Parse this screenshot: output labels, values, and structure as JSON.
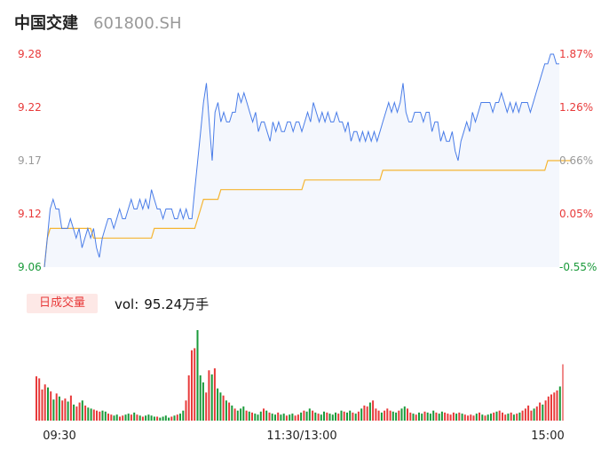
{
  "header": {
    "name": "中国交建",
    "code": "601800.SH"
  },
  "volume_panel": {
    "badge": "日成交量",
    "vol_label": "vol:",
    "vol_value": "95.24万手"
  },
  "colors": {
    "price_line": "#4a7de8",
    "avg_line": "#f5b532",
    "area_fill": "#f4f7fd",
    "up": "#e83a3a",
    "down": "#1a9a3a",
    "neutral": "#999999"
  },
  "chart_data": [
    {
      "type": "line",
      "title": "",
      "price_axis": {
        "ticks": [
          "9.28",
          "9.22",
          "9.17",
          "9.12",
          "9.06"
        ],
        "tick_values": [
          9.28,
          9.22,
          9.17,
          9.12,
          9.06
        ],
        "ylim": [
          9.06,
          9.28
        ]
      },
      "percent_axis": {
        "ticks": [
          "1.87%",
          "1.26%",
          "0.66%",
          "0.05%",
          "-0.55%"
        ]
      },
      "reference_close": 9.115,
      "x_ticks": [
        "09:30",
        "11:30/13:00",
        "15:00"
      ],
      "series": [
        {
          "key": "price",
          "values": [
            9.06,
            9.09,
            9.12,
            9.13,
            9.12,
            9.12,
            9.1,
            9.1,
            9.1,
            9.11,
            9.1,
            9.09,
            9.1,
            9.08,
            9.09,
            9.1,
            9.09,
            9.1,
            9.08,
            9.07,
            9.09,
            9.1,
            9.11,
            9.11,
            9.1,
            9.11,
            9.12,
            9.11,
            9.11,
            9.12,
            9.13,
            9.12,
            9.12,
            9.13,
            9.12,
            9.13,
            9.12,
            9.14,
            9.13,
            9.12,
            9.12,
            9.11,
            9.12,
            9.12,
            9.12,
            9.11,
            9.11,
            9.12,
            9.11,
            9.12,
            9.11,
            9.11,
            9.14,
            9.17,
            9.2,
            9.23,
            9.25,
            9.21,
            9.17,
            9.22,
            9.23,
            9.21,
            9.22,
            9.21,
            9.21,
            9.22,
            9.22,
            9.24,
            9.23,
            9.24,
            9.23,
            9.22,
            9.21,
            9.22,
            9.2,
            9.21,
            9.21,
            9.2,
            9.19,
            9.21,
            9.2,
            9.21,
            9.2,
            9.2,
            9.21,
            9.21,
            9.2,
            9.21,
            9.21,
            9.2,
            9.21,
            9.22,
            9.21,
            9.23,
            9.22,
            9.21,
            9.22,
            9.21,
            9.22,
            9.21,
            9.21,
            9.22,
            9.21,
            9.21,
            9.2,
            9.21,
            9.19,
            9.2,
            9.2,
            9.19,
            9.2,
            9.19,
            9.2,
            9.19,
            9.2,
            9.19,
            9.2,
            9.21,
            9.22,
            9.23,
            9.22,
            9.23,
            9.22,
            9.23,
            9.25,
            9.22,
            9.21,
            9.21,
            9.22,
            9.22,
            9.22,
            9.21,
            9.22,
            9.22,
            9.2,
            9.21,
            9.21,
            9.19,
            9.2,
            9.19,
            9.19,
            9.2,
            9.18,
            9.17,
            9.19,
            9.2,
            9.21,
            9.2,
            9.22,
            9.21,
            9.22,
            9.23,
            9.23,
            9.23,
            9.23,
            9.22,
            9.23,
            9.23,
            9.24,
            9.23,
            9.22,
            9.23,
            9.22,
            9.23,
            9.22,
            9.23,
            9.23,
            9.23,
            9.22,
            9.23,
            9.24,
            9.25,
            9.26,
            9.27,
            9.27,
            9.28,
            9.28,
            9.27,
            9.27
          ]
        },
        {
          "key": "average",
          "values": [
            9.06,
            9.09,
            9.1,
            9.1,
            9.1,
            9.1,
            9.1,
            9.1,
            9.1,
            9.1,
            9.1,
            9.1,
            9.1,
            9.1,
            9.1,
            9.1,
            9.1,
            9.09,
            9.09,
            9.09,
            9.09,
            9.09,
            9.09,
            9.09,
            9.09,
            9.09,
            9.09,
            9.09,
            9.09,
            9.09,
            9.09,
            9.09,
            9.09,
            9.09,
            9.09,
            9.09,
            9.09,
            9.09,
            9.1,
            9.1,
            9.1,
            9.1,
            9.1,
            9.1,
            9.1,
            9.1,
            9.1,
            9.1,
            9.1,
            9.1,
            9.1,
            9.1,
            9.1,
            9.11,
            9.12,
            9.13,
            9.13,
            9.13,
            9.13,
            9.13,
            9.13,
            9.14,
            9.14,
            9.14,
            9.14,
            9.14,
            9.14,
            9.14,
            9.14,
            9.14,
            9.14,
            9.14,
            9.14,
            9.14,
            9.14,
            9.14,
            9.14,
            9.14,
            9.14,
            9.14,
            9.14,
            9.14,
            9.14,
            9.14,
            9.14,
            9.14,
            9.14,
            9.14,
            9.14,
            9.14,
            9.15,
            9.15,
            9.15,
            9.15,
            9.15,
            9.15,
            9.15,
            9.15,
            9.15,
            9.15,
            9.15,
            9.15,
            9.15,
            9.15,
            9.15,
            9.15,
            9.15,
            9.15,
            9.15,
            9.15,
            9.15,
            9.15,
            9.15,
            9.15,
            9.15,
            9.15,
            9.15,
            9.16,
            9.16,
            9.16,
            9.16,
            9.16,
            9.16,
            9.16,
            9.16,
            9.16,
            9.16,
            9.16,
            9.16,
            9.16,
            9.16,
            9.16,
            9.16,
            9.16,
            9.16,
            9.16,
            9.16,
            9.16,
            9.16,
            9.16,
            9.16,
            9.16,
            9.16,
            9.16,
            9.16,
            9.16,
            9.16,
            9.16,
            9.16,
            9.16,
            9.16,
            9.16,
            9.16,
            9.16,
            9.16,
            9.16,
            9.16,
            9.16,
            9.16,
            9.16,
            9.16,
            9.16,
            9.16,
            9.16,
            9.16,
            9.16,
            9.16,
            9.16,
            9.16,
            9.16,
            9.16,
            9.16,
            9.16,
            9.16,
            9.17,
            9.17,
            9.17,
            9.17,
            9.17,
            9.17,
            9.17,
            9.17,
            9.17
          ]
        }
      ]
    },
    {
      "type": "bar",
      "title": "",
      "unit_note": "relative volume per minute",
      "volume": [
        0.44,
        0.42,
        0.31,
        0.36,
        0.33,
        0.29,
        0.21,
        0.27,
        0.24,
        0.2,
        0.22,
        0.19,
        0.25,
        0.16,
        0.14,
        0.18,
        0.2,
        0.15,
        0.13,
        0.12,
        0.11,
        0.1,
        0.09,
        0.1,
        0.09,
        0.07,
        0.06,
        0.05,
        0.06,
        0.04,
        0.05,
        0.06,
        0.07,
        0.06,
        0.08,
        0.06,
        0.05,
        0.04,
        0.05,
        0.06,
        0.05,
        0.04,
        0.04,
        0.03,
        0.04,
        0.05,
        0.03,
        0.04,
        0.05,
        0.06,
        0.07,
        0.1,
        0.2,
        0.45,
        0.7,
        0.72,
        0.9,
        0.45,
        0.38,
        0.28,
        0.5,
        0.46,
        0.52,
        0.32,
        0.28,
        0.25,
        0.2,
        0.18,
        0.15,
        0.12,
        0.1,
        0.12,
        0.14,
        0.1,
        0.09,
        0.08,
        0.07,
        0.06,
        0.09,
        0.12,
        0.1,
        0.08,
        0.07,
        0.06,
        0.08,
        0.06,
        0.07,
        0.05,
        0.06,
        0.07,
        0.05,
        0.06,
        0.08,
        0.1,
        0.09,
        0.12,
        0.1,
        0.08,
        0.07,
        0.06,
        0.09,
        0.08,
        0.07,
        0.06,
        0.08,
        0.07,
        0.1,
        0.09,
        0.08,
        0.1,
        0.08,
        0.07,
        0.09,
        0.12,
        0.15,
        0.14,
        0.18,
        0.2,
        0.12,
        0.1,
        0.08,
        0.1,
        0.12,
        0.1,
        0.09,
        0.08,
        0.1,
        0.12,
        0.14,
        0.12,
        0.08,
        0.07,
        0.06,
        0.08,
        0.07,
        0.09,
        0.08,
        0.07,
        0.1,
        0.08,
        0.07,
        0.09,
        0.08,
        0.07,
        0.06,
        0.08,
        0.07,
        0.08,
        0.07,
        0.06,
        0.05,
        0.06,
        0.05,
        0.07,
        0.08,
        0.06,
        0.05,
        0.06,
        0.07,
        0.08,
        0.09,
        0.1,
        0.08,
        0.06,
        0.07,
        0.08,
        0.06,
        0.07,
        0.08,
        0.1,
        0.12,
        0.15,
        0.1,
        0.12,
        0.14,
        0.18,
        0.16,
        0.2,
        0.24,
        0.26,
        0.28,
        0.3,
        0.34,
        0.56
      ],
      "direction": [
        1,
        1,
        1,
        1,
        -1,
        1,
        -1,
        1,
        -1,
        1,
        1,
        -1,
        1,
        -1,
        1,
        1,
        -1,
        1,
        -1,
        -1,
        1,
        1,
        1,
        -1,
        -1,
        1,
        1,
        -1,
        -1,
        1,
        1,
        -1,
        -1,
        1,
        -1,
        1,
        -1,
        1,
        -1,
        -1,
        -1,
        -1,
        1,
        -1,
        -1,
        -1,
        -1,
        1,
        -1,
        1,
        -1,
        -1,
        1,
        1,
        1,
        1,
        -1,
        -1,
        -1,
        1,
        1,
        -1,
        1,
        -1,
        -1,
        1,
        -1,
        1,
        -1,
        1,
        -1,
        -1,
        -1,
        1,
        -1,
        1,
        -1,
        -1,
        -1,
        1,
        -1,
        1,
        -1,
        -1,
        1,
        -1,
        -1,
        1,
        -1,
        -1,
        1,
        1,
        -1,
        1,
        -1,
        -1,
        1,
        -1,
        1,
        -1,
        -1,
        1,
        -1,
        -1,
        -1,
        1,
        -1,
        1,
        -1,
        -1,
        1,
        -1,
        1,
        -1,
        1,
        1,
        -1,
        1,
        1,
        1,
        -1,
        1,
        1,
        1,
        -1,
        -1,
        1,
        -1,
        -1,
        1,
        1,
        -1,
        1,
        -1,
        -1,
        1,
        -1,
        -1,
        -1,
        1,
        -1,
        -1,
        1,
        1,
        1,
        1,
        -1,
        1,
        -1,
        1,
        1,
        1,
        1,
        -1,
        1,
        -1,
        1,
        -1,
        -1,
        1,
        -1,
        1,
        1,
        1,
        -1,
        1,
        -1,
        1,
        -1,
        1,
        1,
        1,
        1,
        -1,
        1,
        1,
        -1,
        1,
        1,
        1,
        1,
        1
      ]
    }
  ]
}
